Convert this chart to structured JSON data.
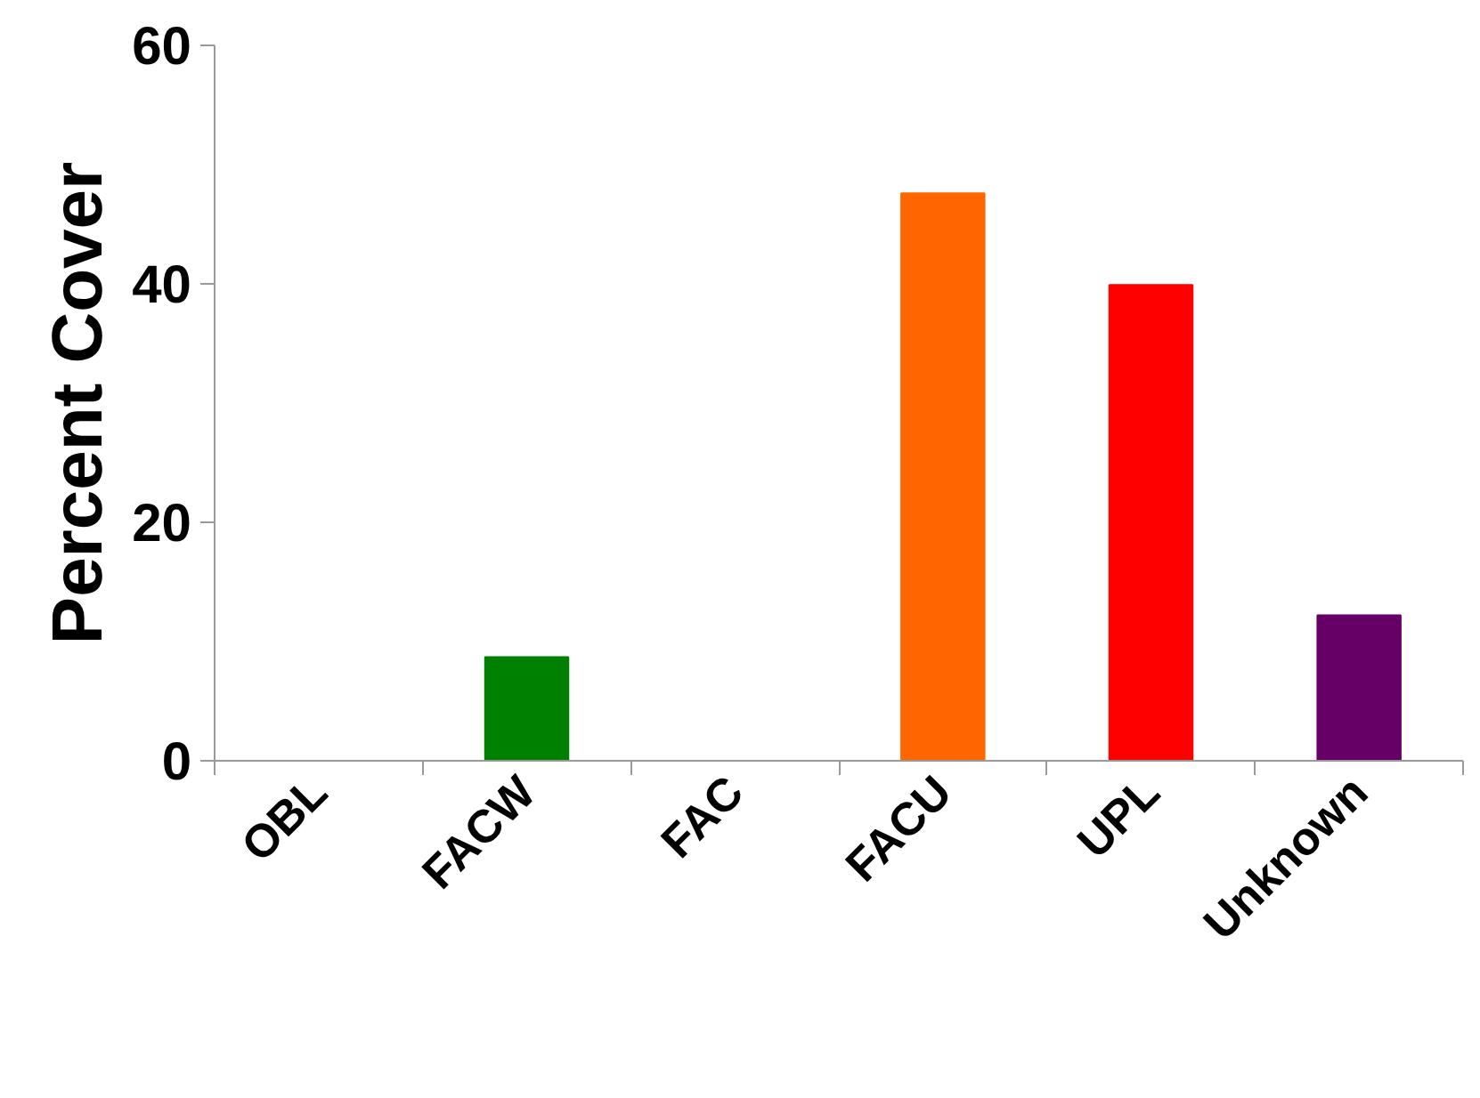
{
  "chart_data": {
    "type": "bar",
    "ylabel": "Percent Cover",
    "categories": [
      "OBL",
      "FACW",
      "FAC",
      "FACU",
      "UPL",
      "Unknown"
    ],
    "values": [
      0,
      8.7,
      0,
      47.6,
      39.9,
      12.2
    ],
    "colors": [
      "#008000",
      "#008000",
      "#ff6600",
      "#ff6600",
      "#ff0000",
      "#660066"
    ],
    "ylim": [
      0,
      60
    ],
    "yticks": [
      0,
      20,
      40,
      60
    ],
    "grid": false
  }
}
